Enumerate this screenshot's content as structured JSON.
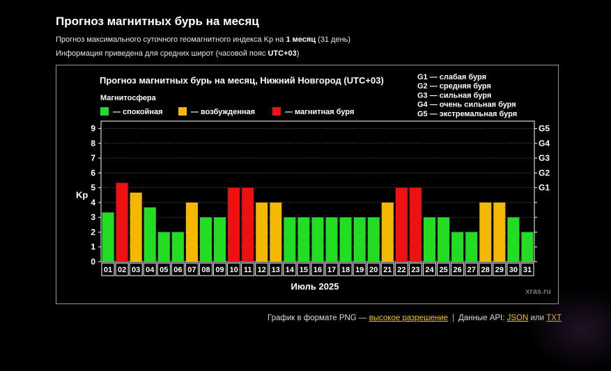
{
  "page": {
    "title": "Прогноз магнитных бурь на месяц",
    "desc1_prefix": "Прогноз максимального суточного геомагнитного индекса Kp на ",
    "desc1_bold": "1 месяц",
    "desc1_suffix": " (31 день)",
    "desc2_prefix": "Информация приведена для средних широт (часовой пояс ",
    "desc2_bold": "UTC+03",
    "desc2_suffix": ")"
  },
  "footer": {
    "png_text": "График в формате PNG — ",
    "png_link": "высокое разрешение",
    "separator": "|",
    "api_text": "Данные API: ",
    "json_link": "JSON",
    "or_text": " или ",
    "txt_link": "TXT"
  },
  "colors": {
    "quiet": "#22dd22",
    "excited": "#f5b800",
    "storm": "#ee1111",
    "background": "#000000",
    "grid": "#444444"
  },
  "chart_data": {
    "type": "bar",
    "title": "Прогноз магнитных бурь на месяц, Нижний Новгород (UTC+03)",
    "xlabel": "Июль 2025",
    "ylabel": "Kp",
    "ylim": [
      0,
      9.5
    ],
    "yticks": [
      0,
      1,
      2,
      3,
      4,
      5,
      6,
      7,
      8,
      9
    ],
    "grid": true,
    "watermark": "xras.ru",
    "legend_title": "Магнитосфера",
    "legend": [
      {
        "label": "— спокойная",
        "color": "#22dd22"
      },
      {
        "label": "— возбужденная",
        "color": "#f5b800"
      },
      {
        "label": "— магнитная буря",
        "color": "#ee1111"
      }
    ],
    "g_legend": [
      "G1 — слабая буря",
      "G2 — средняя буря",
      "G3 — сильная буря",
      "G4 — очень сильная буря",
      "G5 — экстремальная буря"
    ],
    "right_axis": [
      {
        "label": "G1",
        "kp": 5
      },
      {
        "label": "G2",
        "kp": 6
      },
      {
        "label": "G3",
        "kp": 7
      },
      {
        "label": "G4",
        "kp": 8
      },
      {
        "label": "G5",
        "kp": 9
      }
    ],
    "categories": [
      "01",
      "02",
      "03",
      "04",
      "05",
      "06",
      "07",
      "08",
      "09",
      "10",
      "11",
      "12",
      "13",
      "14",
      "15",
      "16",
      "17",
      "18",
      "19",
      "20",
      "21",
      "22",
      "23",
      "24",
      "25",
      "26",
      "27",
      "28",
      "29",
      "30",
      "31"
    ],
    "values": [
      3.33,
      5.33,
      4.67,
      3.67,
      2,
      2,
      4,
      3,
      3,
      5,
      5,
      4,
      4,
      3,
      3,
      3,
      3,
      3,
      3,
      3,
      4,
      5,
      5,
      3,
      3,
      2,
      2,
      4,
      4,
      3,
      2
    ],
    "levels": [
      "quiet",
      "storm",
      "excited",
      "quiet",
      "quiet",
      "quiet",
      "excited",
      "quiet",
      "quiet",
      "storm",
      "storm",
      "excited",
      "excited",
      "quiet",
      "quiet",
      "quiet",
      "quiet",
      "quiet",
      "quiet",
      "quiet",
      "excited",
      "storm",
      "storm",
      "quiet",
      "quiet",
      "quiet",
      "quiet",
      "excited",
      "excited",
      "quiet",
      "quiet"
    ]
  }
}
